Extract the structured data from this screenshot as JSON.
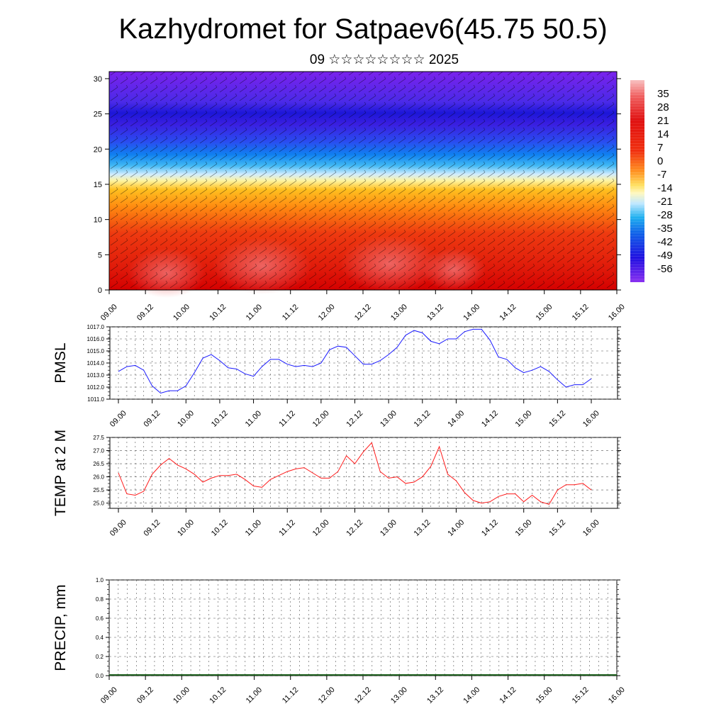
{
  "header": {
    "title": "Kazhydromet for Satpaev6(45.75 50.5)",
    "subtitle": "09 ☆☆☆☆☆☆☆☆ 2025"
  },
  "colors": {
    "pmsl_line": "#1a1aff",
    "temp_line": "#ff1a1a"
  },
  "chart_data": [
    {
      "type": "heatmap",
      "title": "",
      "x_ticks": [
        "09.00",
        "09.12",
        "10.00",
        "10.12",
        "11.00",
        "11.12",
        "12.00",
        "12.12",
        "13.00",
        "13.12",
        "14.00",
        "14.12",
        "15.00",
        "15.12",
        "16.00"
      ],
      "y_ticks": [
        0,
        5,
        10,
        15,
        20,
        25,
        30
      ],
      "ylim": [
        0,
        31
      ],
      "colorbar": {
        "labels": [
          35,
          28,
          21,
          14,
          7,
          0,
          -7,
          -14,
          -21,
          -28,
          -35,
          -42,
          -49,
          -56
        ],
        "range": [
          -63,
          42
        ]
      },
      "overlay": "wind barbs",
      "description_of_field": [
        {
          "level": 0,
          "value": 33
        },
        {
          "level": 3,
          "value": 30
        },
        {
          "level": 8,
          "value": 22
        },
        {
          "level": 12,
          "value": 10
        },
        {
          "level": 15,
          "value": 0
        },
        {
          "level": 17,
          "value": -10
        },
        {
          "level": 19,
          "value": -25
        },
        {
          "level": 21,
          "value": -40
        },
        {
          "level": 25,
          "value": -60
        },
        {
          "level": 31,
          "value": -55
        }
      ]
    },
    {
      "type": "line",
      "ylabel": "PMSL",
      "x_ticks": [
        "09.00",
        "09.12",
        "10.00",
        "10.12",
        "11.00",
        "11.12",
        "12.00",
        "12.12",
        "13.00",
        "13.12",
        "14.00",
        "14.12",
        "15.00",
        "15.12",
        "16.00"
      ],
      "y_ticks": [
        "1011.0",
        "1012.0",
        "1013.0",
        "1014.0",
        "1015.0",
        "1016.0",
        "1017.0"
      ],
      "ylim": [
        1011,
        1017
      ],
      "x": [
        0,
        3,
        6,
        9,
        12,
        15,
        18,
        21,
        24,
        27,
        30,
        33,
        36,
        39,
        42,
        45,
        48,
        51,
        54,
        57,
        60,
        63,
        66,
        69,
        72,
        75,
        78,
        81,
        84,
        87,
        90,
        93,
        96,
        99,
        102,
        105,
        108,
        111,
        114,
        117,
        120,
        123,
        126,
        129,
        132,
        135,
        138,
        141,
        144,
        147,
        150,
        153,
        156,
        159,
        162,
        165,
        168
      ],
      "series": [
        {
          "values": [
            1013.3,
            1013.7,
            1013.8,
            1013.4,
            1012.1,
            1011.5,
            1011.7,
            1011.7,
            1012.1,
            1013.2,
            1014.4,
            1014.7,
            1014.2,
            1013.6,
            1013.5,
            1013.1,
            1012.9,
            1013.7,
            1014.3,
            1014.3,
            1013.9,
            1013.7,
            1013.8,
            1013.7,
            1014.0,
            1015.1,
            1015.4,
            1015.3,
            1014.6,
            1013.9,
            1013.9,
            1014.2,
            1014.7,
            1015.3,
            1016.3,
            1016.7,
            1016.5,
            1015.8,
            1015.6,
            1016.0,
            1016.0,
            1016.6,
            1016.8,
            1016.8,
            1015.9,
            1014.5,
            1014.3,
            1013.6,
            1013.2,
            1013.4,
            1013.7,
            1013.3,
            1012.6,
            1012.0,
            1012.2,
            1012.2,
            1012.7
          ]
        }
      ]
    },
    {
      "type": "line",
      "ylabel": "TEMP at 2 M",
      "x_ticks": [
        "09.00",
        "09.12",
        "10.00",
        "10.12",
        "11.00",
        "11.12",
        "12.00",
        "12.12",
        "13.00",
        "13.12",
        "14.00",
        "14.12",
        "15.00",
        "15.12",
        "16.00"
      ],
      "y_ticks": [
        "25.0",
        "25.5",
        "26.0",
        "26.5",
        "27.0",
        "27.5"
      ],
      "ylim": [
        24.8,
        27.5
      ],
      "x": [
        0,
        3,
        6,
        9,
        12,
        15,
        18,
        21,
        24,
        27,
        30,
        33,
        36,
        39,
        42,
        45,
        48,
        51,
        54,
        57,
        60,
        63,
        66,
        69,
        72,
        75,
        78,
        81,
        84,
        87,
        90,
        93,
        96,
        99,
        102,
        105,
        108,
        111,
        114,
        117,
        120,
        123,
        126,
        129,
        132,
        135,
        138,
        141,
        144,
        147,
        150,
        153,
        156,
        159,
        162,
        165,
        168
      ],
      "series": [
        {
          "values": [
            26.15,
            25.35,
            25.3,
            25.45,
            26.1,
            26.45,
            26.7,
            26.45,
            26.3,
            26.1,
            25.8,
            25.95,
            26.05,
            26.05,
            26.1,
            25.9,
            25.65,
            25.6,
            25.9,
            26.05,
            26.2,
            26.3,
            26.35,
            26.15,
            25.95,
            25.95,
            26.2,
            26.8,
            26.5,
            26.95,
            27.3,
            26.2,
            25.95,
            26.0,
            25.75,
            25.8,
            26.0,
            26.4,
            27.15,
            26.1,
            25.85,
            25.4,
            25.1,
            25.0,
            25.05,
            25.25,
            25.35,
            25.35,
            25.05,
            25.3,
            25.05,
            24.95,
            25.5,
            25.7,
            25.7,
            25.75,
            25.5
          ]
        }
      ]
    },
    {
      "type": "line",
      "ylabel": "PRECIP, mm",
      "x_ticks": [
        "09.00",
        "09.12",
        "10.00",
        "10.12",
        "11.00",
        "11.12",
        "12.00",
        "12.12",
        "13.00",
        "13.12",
        "14.00",
        "14.12",
        "15.00",
        "15.12",
        "16.00"
      ],
      "y_ticks": [
        "0.0",
        "0.2",
        "0.4",
        "0.6",
        "0.8",
        "1.0"
      ],
      "ylim": [
        0,
        1
      ],
      "series": []
    }
  ]
}
